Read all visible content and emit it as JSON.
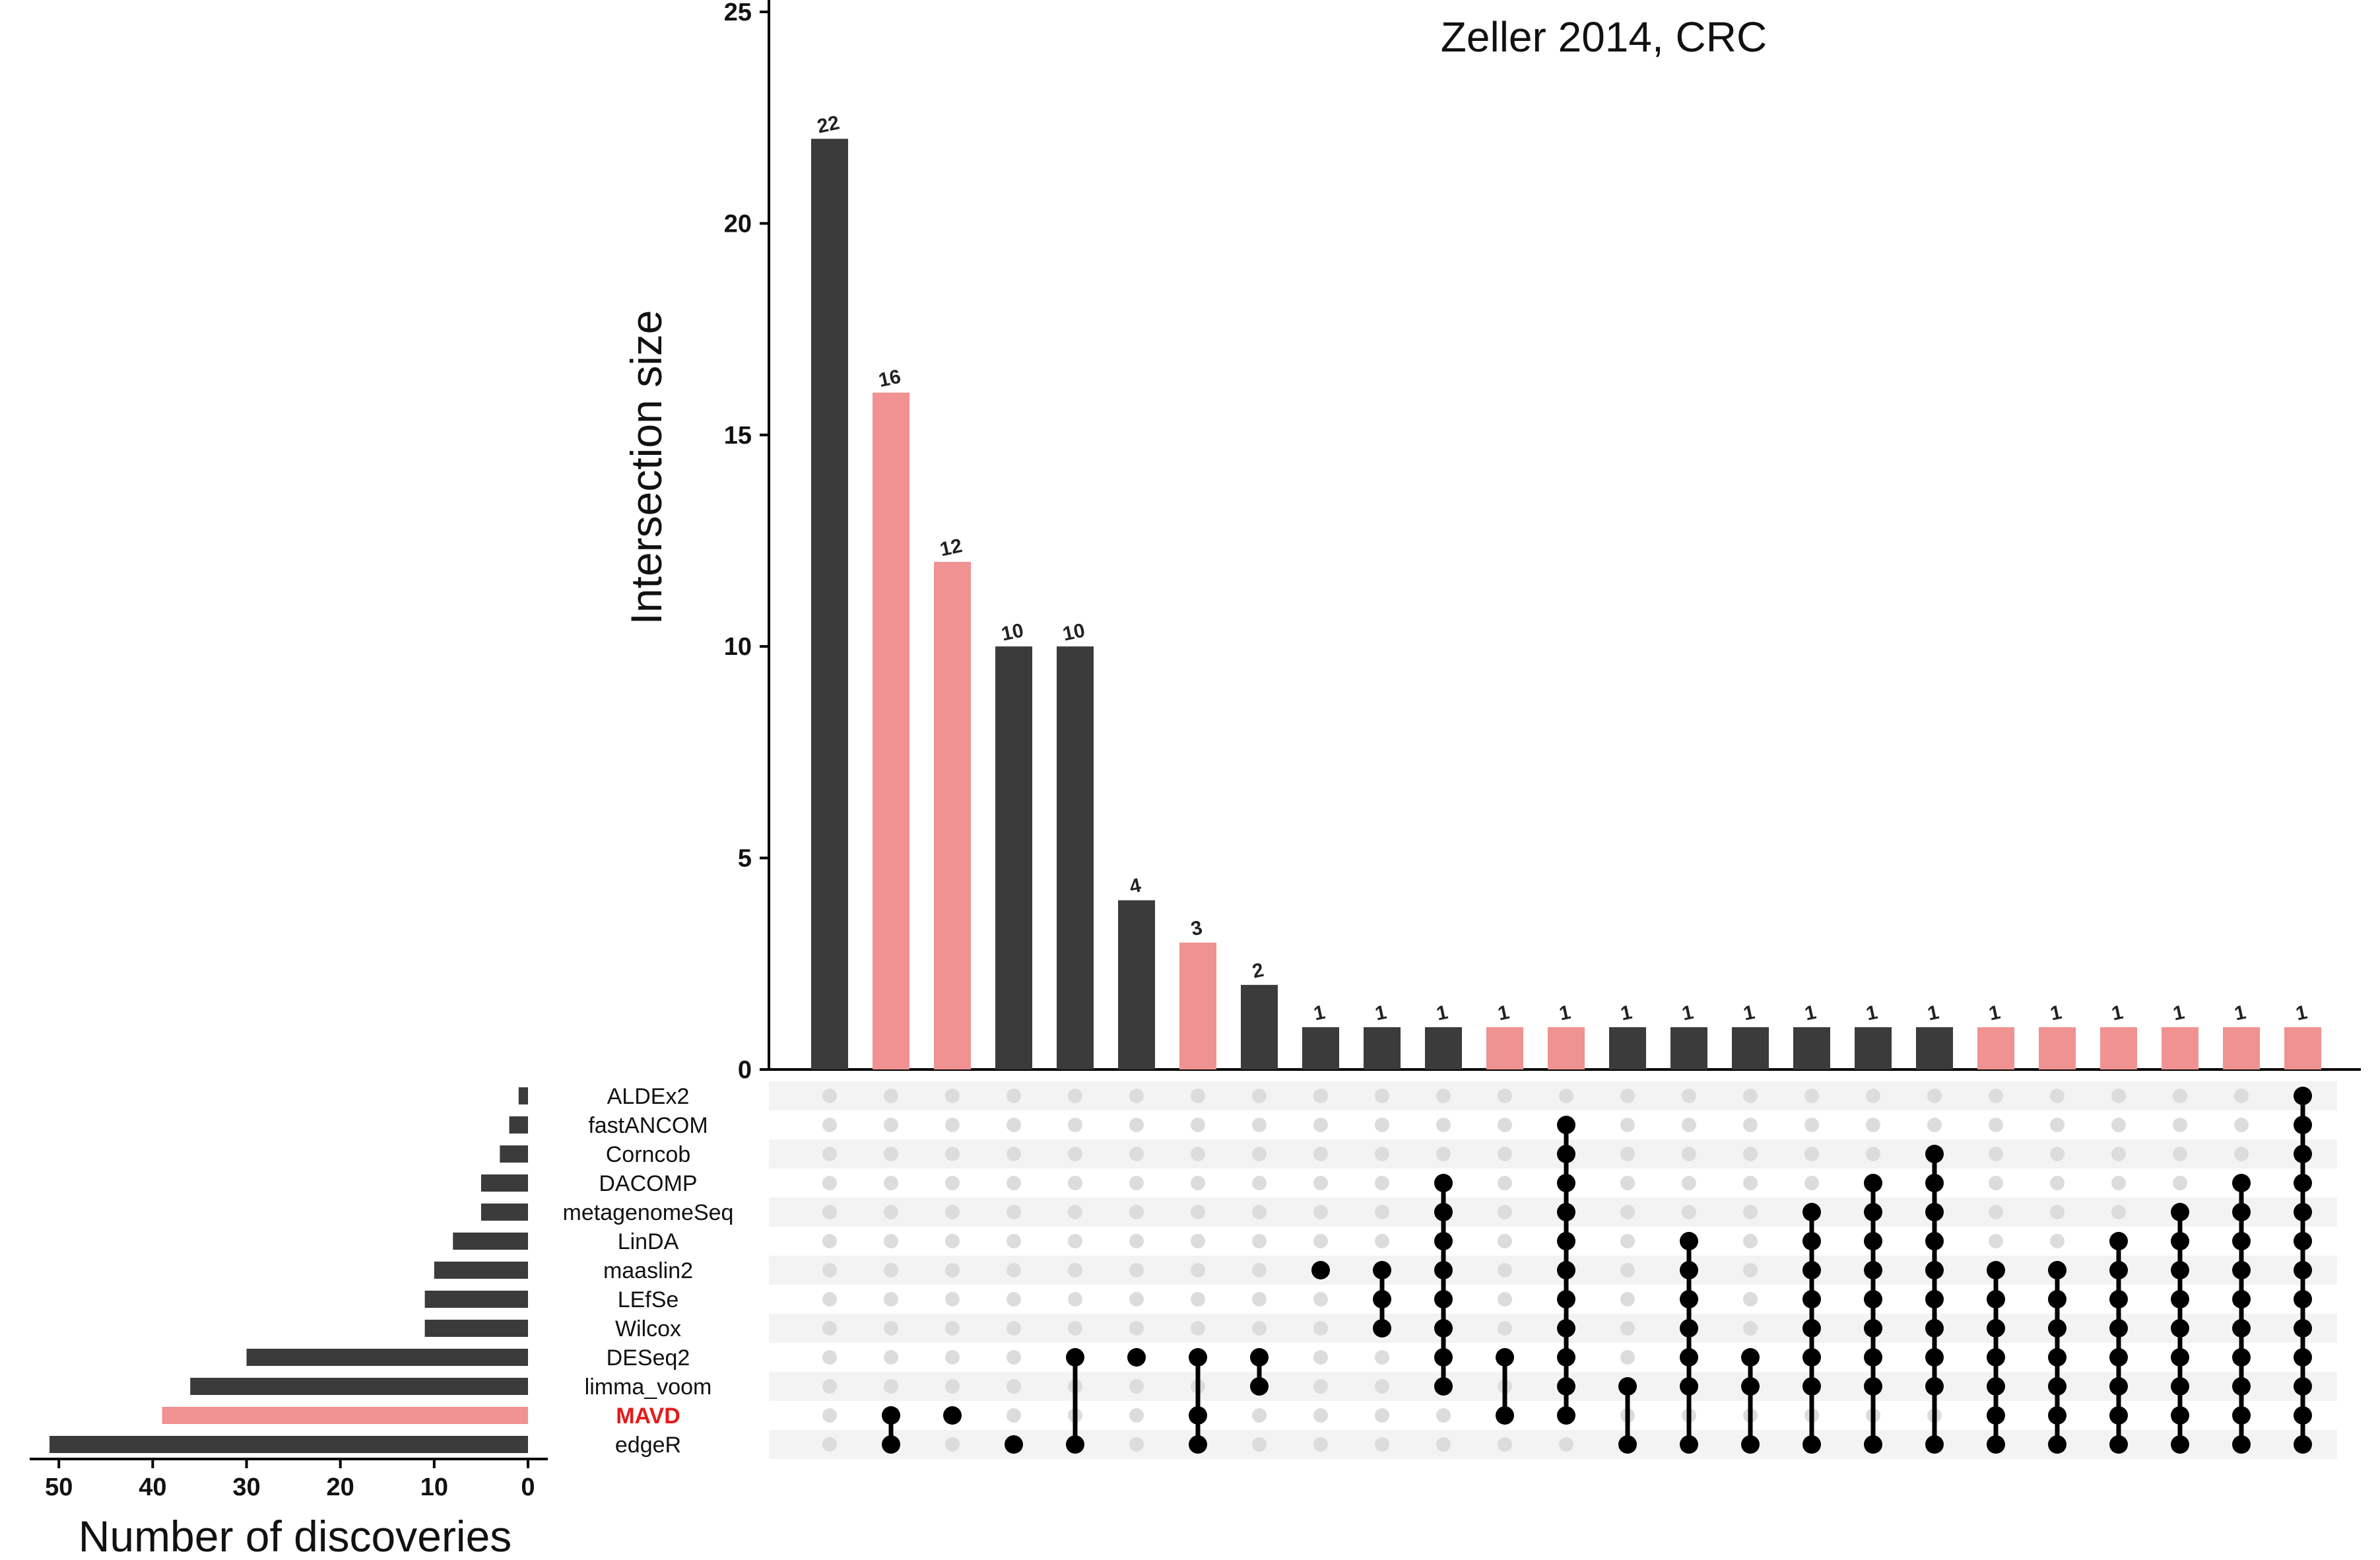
{
  "chart_data": {
    "type": "bar",
    "title": "Zeller 2014, CRC",
    "intersection_axis": {
      "label": "Intersection size",
      "ylim": [
        0,
        25
      ],
      "ticks": [
        "0",
        "5",
        "10",
        "15",
        "20",
        "25"
      ]
    },
    "set_size_axis": {
      "label": "Number of discoveries",
      "xlim": [
        0,
        52
      ],
      "ticks": [
        "50",
        "40",
        "30",
        "20",
        "10",
        "0"
      ]
    },
    "colors": {
      "default": "#3b3b3b",
      "highlight": "#ef9291",
      "highlight_label": "#e41a1c",
      "dot_on": "#000000",
      "dot_off": "#dcdcdc",
      "stripe": "#f3f3f3"
    },
    "sets": [
      {
        "name": "ALDEx2",
        "size": 1,
        "highlight": false
      },
      {
        "name": "fastANCOM",
        "size": 2,
        "highlight": false
      },
      {
        "name": "Corncob",
        "size": 3,
        "highlight": false
      },
      {
        "name": "DACOMP",
        "size": 5,
        "highlight": false
      },
      {
        "name": "metagenomeSeq",
        "size": 5,
        "highlight": false
      },
      {
        "name": "LinDA",
        "size": 8,
        "highlight": false
      },
      {
        "name": "maaslin2",
        "size": 10,
        "highlight": false
      },
      {
        "name": "LEfSe",
        "size": 11,
        "highlight": false
      },
      {
        "name": "Wilcox",
        "size": 11,
        "highlight": false
      },
      {
        "name": "DESeq2",
        "size": 30,
        "highlight": false
      },
      {
        "name": "limma_voom",
        "size": 36,
        "highlight": false
      },
      {
        "name": "MAVD",
        "size": 39,
        "highlight": true
      },
      {
        "name": "edgeR",
        "size": 51,
        "highlight": false
      }
    ],
    "intersections": [
      {
        "value": 22,
        "label": "22",
        "highlight": false,
        "members": []
      },
      {
        "value": 16,
        "label": "16",
        "highlight": true,
        "members": [
          "MAVD",
          "edgeR"
        ]
      },
      {
        "value": 12,
        "label": "12",
        "highlight": true,
        "members": [
          "MAVD"
        ]
      },
      {
        "value": 10,
        "label": "10",
        "highlight": false,
        "members": [
          "edgeR"
        ]
      },
      {
        "value": 10,
        "label": "10",
        "highlight": false,
        "members": [
          "DESeq2",
          "edgeR"
        ]
      },
      {
        "value": 4,
        "label": "4",
        "highlight": false,
        "members": [
          "DESeq2"
        ]
      },
      {
        "value": 3,
        "label": "3",
        "highlight": true,
        "members": [
          "DESeq2",
          "MAVD",
          "edgeR"
        ]
      },
      {
        "value": 2,
        "label": "2",
        "highlight": false,
        "members": [
          "DESeq2",
          "limma_voom"
        ]
      },
      {
        "value": 1,
        "label": "1",
        "highlight": false,
        "members": [
          "maaslin2"
        ]
      },
      {
        "value": 1,
        "label": "1",
        "highlight": false,
        "members": [
          "maaslin2",
          "LEfSe",
          "Wilcox"
        ]
      },
      {
        "value": 1,
        "label": "1",
        "highlight": false,
        "members": [
          "DACOMP",
          "metagenomeSeq",
          "LinDA",
          "maaslin2",
          "LEfSe",
          "Wilcox",
          "DESeq2",
          "limma_voom"
        ]
      },
      {
        "value": 1,
        "label": "1",
        "highlight": true,
        "members": [
          "DESeq2",
          "MAVD"
        ]
      },
      {
        "value": 1,
        "label": "1",
        "highlight": true,
        "members": [
          "fastANCOM",
          "Corncob",
          "DACOMP",
          "metagenomeSeq",
          "LinDA",
          "maaslin2",
          "LEfSe",
          "Wilcox",
          "DESeq2",
          "limma_voom",
          "MAVD"
        ]
      },
      {
        "value": 1,
        "label": "1",
        "highlight": false,
        "members": [
          "limma_voom",
          "edgeR"
        ]
      },
      {
        "value": 1,
        "label": "1",
        "highlight": false,
        "members": [
          "LinDA",
          "maaslin2",
          "LEfSe",
          "Wilcox",
          "DESeq2",
          "limma_voom",
          "edgeR"
        ]
      },
      {
        "value": 1,
        "label": "1",
        "highlight": false,
        "members": [
          "DESeq2",
          "limma_voom",
          "edgeR"
        ]
      },
      {
        "value": 1,
        "label": "1",
        "highlight": false,
        "members": [
          "metagenomeSeq",
          "LinDA",
          "maaslin2",
          "LEfSe",
          "Wilcox",
          "DESeq2",
          "limma_voom",
          "edgeR"
        ]
      },
      {
        "value": 1,
        "label": "1",
        "highlight": false,
        "members": [
          "DACOMP",
          "metagenomeSeq",
          "LinDA",
          "maaslin2",
          "LEfSe",
          "Wilcox",
          "DESeq2",
          "limma_voom",
          "edgeR"
        ]
      },
      {
        "value": 1,
        "label": "1",
        "highlight": false,
        "members": [
          "Corncob",
          "DACOMP",
          "metagenomeSeq",
          "LinDA",
          "maaslin2",
          "LEfSe",
          "Wilcox",
          "DESeq2",
          "limma_voom",
          "edgeR"
        ]
      },
      {
        "value": 1,
        "label": "1",
        "highlight": true,
        "members": [
          "maaslin2",
          "LEfSe",
          "Wilcox",
          "DESeq2",
          "limma_voom",
          "MAVD",
          "edgeR"
        ]
      },
      {
        "value": 1,
        "label": "1",
        "highlight": true,
        "members": [
          "maaslin2",
          "LEfSe",
          "Wilcox",
          "DESeq2",
          "limma_voom",
          "MAVD",
          "edgeR"
        ]
      },
      {
        "value": 1,
        "label": "1",
        "highlight": true,
        "members": [
          "LinDA",
          "maaslin2",
          "LEfSe",
          "Wilcox",
          "DESeq2",
          "limma_voom",
          "MAVD",
          "edgeR"
        ]
      },
      {
        "value": 1,
        "label": "1",
        "highlight": true,
        "members": [
          "metagenomeSeq",
          "LinDA",
          "maaslin2",
          "LEfSe",
          "Wilcox",
          "DESeq2",
          "limma_voom",
          "MAVD",
          "edgeR"
        ]
      },
      {
        "value": 1,
        "label": "1",
        "highlight": true,
        "members": [
          "DACOMP",
          "metagenomeSeq",
          "LinDA",
          "maaslin2",
          "LEfSe",
          "Wilcox",
          "DESeq2",
          "limma_voom",
          "MAVD",
          "edgeR"
        ]
      },
      {
        "value": 1,
        "label": "1",
        "highlight": true,
        "members": [
          "ALDEx2",
          "fastANCOM",
          "Corncob",
          "DACOMP",
          "metagenomeSeq",
          "LinDA",
          "maaslin2",
          "LEfSe",
          "Wilcox",
          "DESeq2",
          "limma_voom",
          "MAVD",
          "edgeR"
        ]
      }
    ]
  }
}
